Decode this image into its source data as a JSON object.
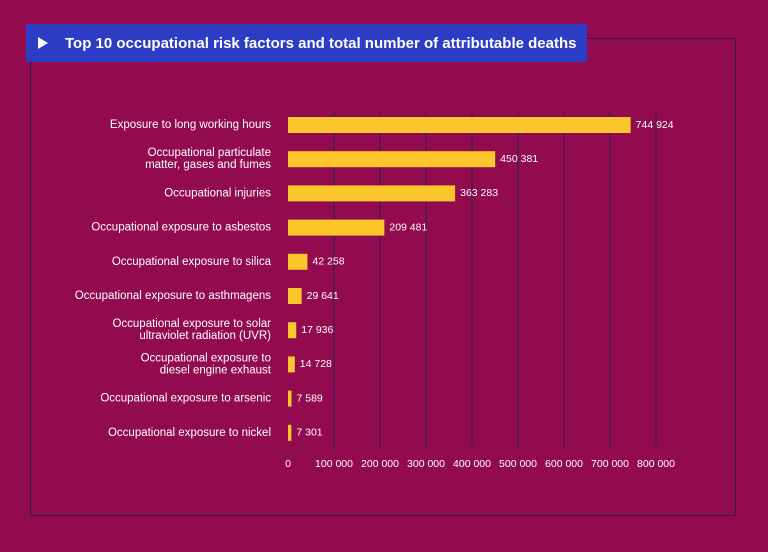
{
  "colors": {
    "background": "#920b4e",
    "title_bar": "#2c3cc4",
    "bar": "#fbc52c",
    "gridline": "#3a1f55",
    "text": "#ffffff"
  },
  "header": {
    "icon": "play-arrow-icon"
  },
  "chart_data": {
    "type": "bar",
    "orientation": "horizontal",
    "title": "Top 10 occupational risk factors and total number of attributable deaths",
    "categories": [
      [
        "Exposure to long working hours"
      ],
      [
        "Occupational particulate",
        "matter, gases and fumes"
      ],
      [
        "Occupational injuries"
      ],
      [
        "Occupational exposure to asbestos"
      ],
      [
        "Occupational exposure to silica"
      ],
      [
        "Occupational exposure to asthmagens"
      ],
      [
        "Occupational exposure to solar",
        "ultraviolet radiation (UVR)"
      ],
      [
        "Occupational exposure to",
        "diesel engine exhaust"
      ],
      [
        "Occupational exposure to arsenic"
      ],
      [
        "Occupational exposure to nickel"
      ]
    ],
    "values": [
      744924,
      450381,
      363283,
      209481,
      42258,
      29641,
      17936,
      14728,
      7589,
      7301
    ],
    "value_labels": [
      "744 924",
      "450 381",
      "363 283",
      "209 481",
      "42 258",
      "29 641",
      "17 936",
      "14 728",
      "7 589",
      "7 301"
    ],
    "xlim": [
      0,
      800000
    ],
    "ticks": [
      0,
      100000,
      200000,
      300000,
      400000,
      500000,
      600000,
      700000,
      800000
    ],
    "tick_labels": [
      "0",
      "100 000",
      "200 000",
      "300 000",
      "400 000",
      "500 000",
      "600 000",
      "700 000",
      "800 000"
    ],
    "xlabel": "",
    "ylabel": "",
    "grid": "vertical"
  }
}
